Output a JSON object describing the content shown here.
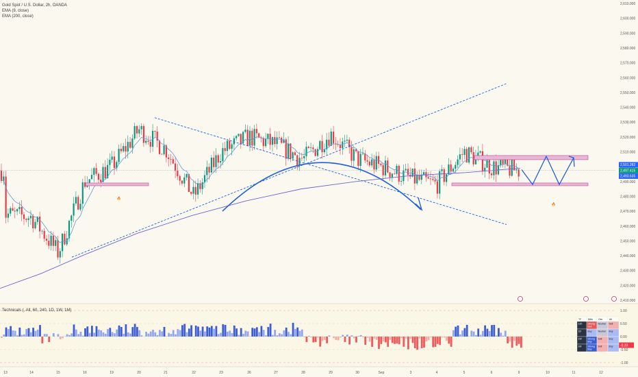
{
  "header": {
    "title": "Gold Spot / U.S. Dollar, 2h, OANDA",
    "ema1": "EMA (9, close)",
    "ema2": "EMA (200, close)"
  },
  "indicator": {
    "label": "Technicals (, All, 60, 240, 1D, 1W, 1M)"
  },
  "price_tags": {
    "high": "2,501.282",
    "last": "2,497.415",
    "countdown": "01:52:22",
    "low": "2,493.635"
  },
  "chart_data": [
    {
      "type": "candlestick",
      "title": "Gold Spot / U.S. Dollar, 2h, OANDA",
      "series_names": [
        "EMA (9, close)",
        "EMA (200, close)"
      ],
      "y_ticks": [
        "2,610.000",
        "2,600.000",
        "2,590.000",
        "2,580.000",
        "2,570.000",
        "2,560.000",
        "2,550.000",
        "2,540.000",
        "2,530.000",
        "2,520.000",
        "2,510.000",
        "2,500.000",
        "2,490.000",
        "2,480.000",
        "2,470.000",
        "2,460.000",
        "2,450.000",
        "2,440.000",
        "2,430.000",
        "2,420.000",
        "2,410.000"
      ],
      "ylim": [
        2410,
        2610
      ],
      "x_ticks": [
        "13",
        "14",
        "15",
        "16",
        "19",
        "20",
        "21",
        "22",
        "23",
        "26",
        "27",
        "28",
        "29",
        "30",
        "Sep",
        "3",
        "4",
        "5",
        "6",
        "9",
        "10",
        "11",
        "12"
      ],
      "approx_close_path": [
        {
          "x": "13",
          "y": 2468
        },
        {
          "x": "14",
          "y": 2466
        },
        {
          "x": "15",
          "y": 2442
        },
        {
          "x": "16",
          "y": 2490
        },
        {
          "x": "19",
          "y": 2500
        },
        {
          "x": "20",
          "y": 2525
        },
        {
          "x": "21",
          "y": 2512
        },
        {
          "x": "22",
          "y": 2480
        },
        {
          "x": "23",
          "y": 2510
        },
        {
          "x": "26",
          "y": 2520
        },
        {
          "x": "27",
          "y": 2515
        },
        {
          "x": "28",
          "y": 2505
        },
        {
          "x": "29",
          "y": 2522
        },
        {
          "x": "30",
          "y": 2505
        },
        {
          "x": "Sep",
          "y": 2500
        },
        {
          "x": "3",
          "y": 2492
        },
        {
          "x": "4",
          "y": 2488
        },
        {
          "x": "5",
          "y": 2510
        },
        {
          "x": "6",
          "y": 2500
        },
        {
          "x": "9",
          "y": 2497.415
        }
      ]
    },
    {
      "type": "bar",
      "title": "Technicals (, All, 60, 240, 1D, 1W, 1M)",
      "y_ticks": [
        "1.00",
        "0.50",
        "0.00",
        "-0.50",
        "-1.00"
      ],
      "ylim": [
        -1,
        1
      ],
      "last_value": "-0.33"
    }
  ],
  "technicals_table": {
    "headers": [
      "TF",
      "MAs",
      "Osc",
      "All"
    ],
    "rows": [
      {
        "tf": "120",
        "mas": "Strong Sell",
        "osc": "Neutral",
        "all": "Sell"
      },
      {
        "tf": "1D",
        "mas": "Buy",
        "osc": "Neutral",
        "all": "Buy"
      },
      {
        "tf": "1W",
        "mas": "Strong Buy",
        "osc": "Sell",
        "all": "Buy"
      },
      {
        "tf": "1M",
        "mas": "Strong Buy",
        "osc": "Sell",
        "all": "Buy"
      }
    ]
  },
  "colors": {
    "bull": "#089981",
    "bear": "#f23645",
    "ema9": "#5b9bd5",
    "ema200": "#6c63d6",
    "annotation": "#1f5fe0",
    "zone": "#e9b6d6",
    "tag_blue": "#2962ff",
    "tag_green": "#089981"
  }
}
